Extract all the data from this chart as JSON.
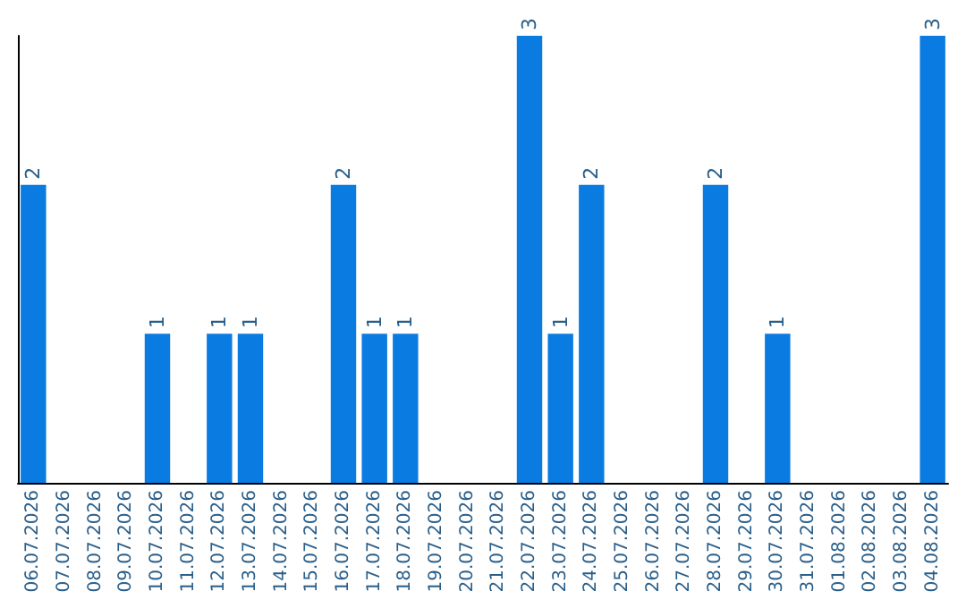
{
  "chart_data": {
    "type": "bar",
    "categories": [
      "06.07.2026",
      "07.07.2026",
      "08.07.2026",
      "09.07.2026",
      "10.07.2026",
      "11.07.2026",
      "12.07.2026",
      "13.07.2026",
      "14.07.2026",
      "15.07.2026",
      "16.07.2026",
      "17.07.2026",
      "18.07.2026",
      "19.07.2026",
      "20.07.2026",
      "21.07.2026",
      "22.07.2026",
      "23.07.2026",
      "24.07.2026",
      "25.07.2026",
      "26.07.2026",
      "27.07.2026",
      "28.07.2026",
      "29.07.2026",
      "30.07.2026",
      "31.07.2026",
      "01.08.2026",
      "02.08.2026",
      "03.08.2026",
      "04.08.2026"
    ],
    "values": [
      2,
      0,
      0,
      0,
      1,
      0,
      1,
      1,
      0,
      0,
      2,
      1,
      1,
      0,
      0,
      0,
      3,
      1,
      2,
      0,
      0,
      0,
      2,
      0,
      1,
      0,
      0,
      0,
      0,
      3
    ],
    "value_labels": [
      "2",
      null,
      null,
      null,
      "1",
      null,
      "1",
      "1",
      null,
      null,
      "2",
      "1",
      "1",
      null,
      null,
      null,
      "3",
      "1",
      "2",
      null,
      null,
      null,
      "2",
      null,
      "1",
      null,
      null,
      null,
      null,
      "3"
    ],
    "color": "#0a7be0"
  }
}
